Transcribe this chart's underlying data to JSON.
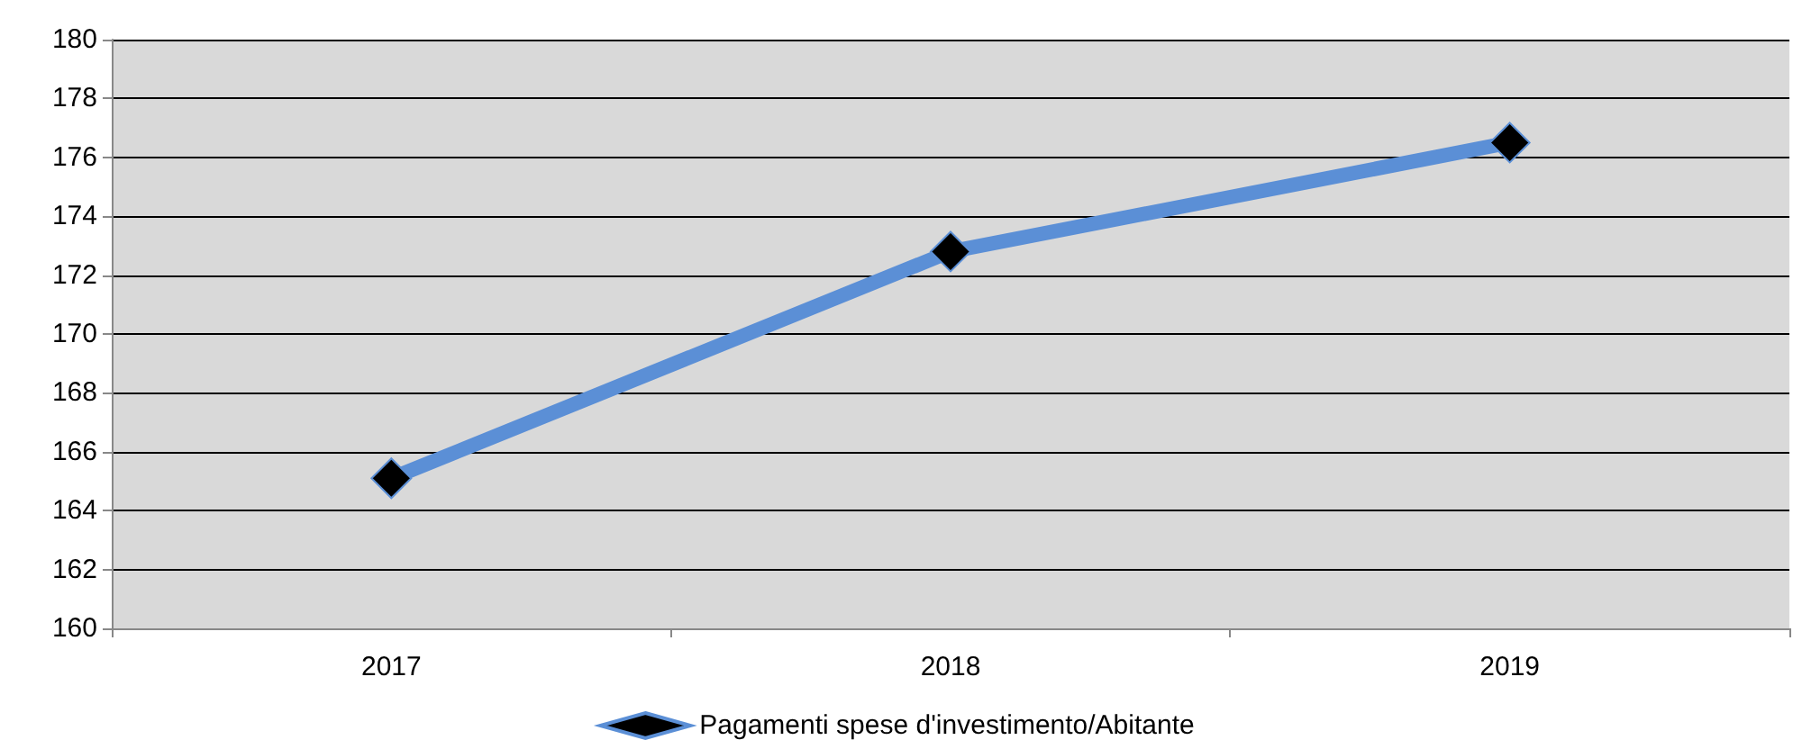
{
  "chart_data": {
    "type": "line",
    "categories": [
      "2017",
      "2018",
      "2019"
    ],
    "series": [
      {
        "name": "Pagamenti spese d'investimento/Abitante",
        "color": "#5b8fd6",
        "values": [
          165.1,
          172.8,
          176.5
        ]
      }
    ],
    "ylim": [
      160,
      180
    ],
    "yticks": [
      160,
      162,
      164,
      166,
      168,
      170,
      172,
      174,
      176,
      178,
      180
    ],
    "grid": "y",
    "legend": "bottom",
    "marker": "diamond",
    "line_style": "solid"
  }
}
